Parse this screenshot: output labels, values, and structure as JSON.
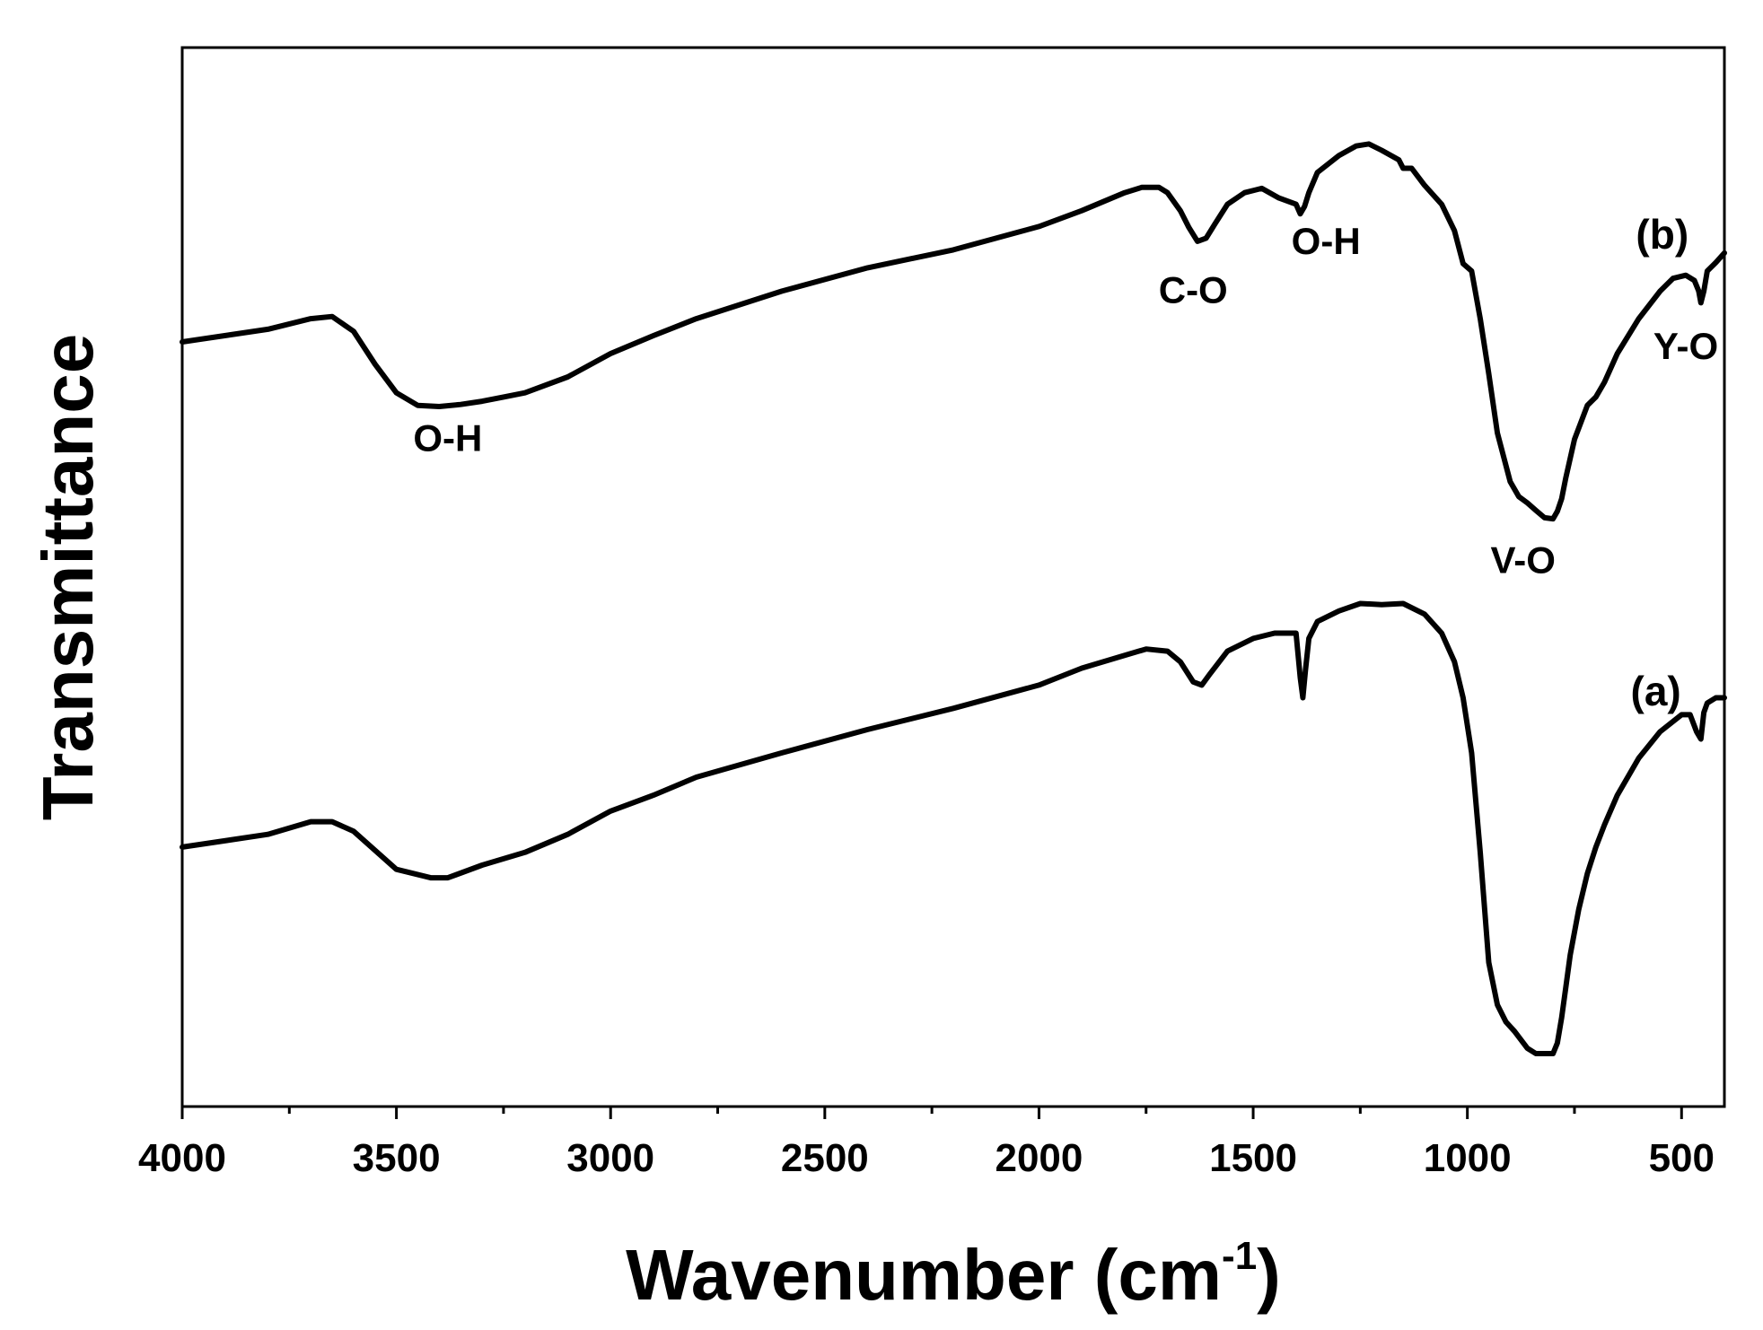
{
  "chart_data": {
    "type": "line",
    "xlabel_main": "Wavenumber (cm",
    "xlabel_sup": "-1",
    "xlabel_close": ")",
    "ylabel": "Transmittance",
    "xlim": [
      4000,
      400
    ],
    "x_reversed": true,
    "ylim": [
      0,
      100
    ],
    "y_ticks_shown": false,
    "grid": false,
    "xticks": [
      4000,
      3500,
      3000,
      2500,
      2000,
      1500,
      1000,
      500
    ],
    "xtick_labels": [
      "4000",
      "3500",
      "3000",
      "2500",
      "2000",
      "1500",
      "1000",
      "500"
    ],
    "series": [
      {
        "name": "(a)",
        "x": [
          4000,
          3800,
          3700,
          3650,
          3600,
          3500,
          3420,
          3380,
          3300,
          3200,
          3100,
          3000,
          2900,
          2800,
          2600,
          2400,
          2200,
          2000,
          1900,
          1800,
          1750,
          1700,
          1670,
          1640,
          1620,
          1600,
          1560,
          1500,
          1450,
          1400,
          1390,
          1384,
          1378,
          1370,
          1350,
          1300,
          1250,
          1200,
          1150,
          1100,
          1060,
          1030,
          1010,
          990,
          970,
          950,
          930,
          910,
          890,
          860,
          840,
          820,
          800,
          790,
          780,
          770,
          760,
          740,
          720,
          700,
          680,
          650,
          600,
          550,
          500,
          480,
          465,
          455,
          448,
          440,
          420,
          400
        ],
        "y": [
          24.5,
          25.7,
          26.9,
          26.9,
          26.0,
          22.4,
          21.6,
          21.6,
          22.8,
          24.0,
          25.7,
          27.9,
          29.4,
          31.1,
          33.4,
          35.6,
          37.6,
          39.8,
          41.4,
          42.6,
          43.2,
          43.0,
          42.0,
          40.1,
          39.8,
          40.9,
          43.0,
          44.2,
          44.7,
          44.7,
          40.5,
          38.6,
          41.2,
          44.2,
          45.8,
          46.8,
          47.5,
          47.4,
          47.5,
          46.5,
          44.7,
          42.0,
          38.6,
          33.4,
          24.0,
          13.6,
          9.6,
          8.0,
          7.1,
          5.5,
          5.0,
          5.0,
          5.0,
          6.0,
          8.4,
          11.3,
          14.3,
          18.6,
          22.0,
          24.5,
          26.6,
          29.4,
          32.9,
          35.4,
          37.0,
          37.0,
          35.4,
          34.7,
          37.2,
          38.1,
          38.6,
          38.6
        ]
      },
      {
        "name": "(b)",
        "x": [
          4000,
          3800,
          3700,
          3650,
          3600,
          3550,
          3500,
          3450,
          3400,
          3350,
          3300,
          3250,
          3200,
          3100,
          3000,
          2900,
          2800,
          2600,
          2400,
          2200,
          2000,
          1900,
          1800,
          1760,
          1720,
          1700,
          1670,
          1650,
          1630,
          1610,
          1590,
          1560,
          1520,
          1480,
          1440,
          1400,
          1390,
          1380,
          1370,
          1350,
          1300,
          1260,
          1230,
          1200,
          1160,
          1150,
          1130,
          1100,
          1060,
          1030,
          1010,
          990,
          970,
          950,
          930,
          900,
          880,
          860,
          840,
          820,
          800,
          790,
          780,
          770,
          750,
          720,
          700,
          680,
          650,
          600,
          550,
          520,
          490,
          470,
          460,
          455,
          448,
          440,
          420,
          400
        ],
        "y": [
          72.2,
          73.4,
          74.4,
          74.6,
          73.2,
          70.1,
          67.4,
          66.2,
          66.1,
          66.3,
          66.6,
          67.0,
          67.4,
          68.9,
          71.1,
          72.8,
          74.4,
          77.0,
          79.2,
          80.9,
          83.1,
          84.6,
          86.3,
          86.8,
          86.8,
          86.3,
          84.6,
          83.0,
          81.7,
          82.0,
          83.3,
          85.2,
          86.3,
          86.7,
          85.8,
          85.2,
          84.3,
          85.0,
          86.3,
          88.2,
          89.8,
          90.7,
          90.9,
          90.3,
          89.4,
          88.6,
          88.6,
          87.0,
          85.2,
          82.7,
          79.6,
          78.9,
          74.4,
          69.2,
          63.6,
          59.0,
          57.6,
          57.0,
          56.3,
          55.6,
          55.5,
          56.2,
          57.4,
          59.4,
          63.0,
          66.2,
          67.0,
          68.4,
          71.1,
          74.4,
          77.0,
          78.2,
          78.5,
          78.0,
          77.0,
          75.9,
          77.0,
          78.9,
          79.7,
          80.6
        ]
      }
    ],
    "annotations": [
      {
        "text": "O-H",
        "x": 3380,
        "y": 61.9
      },
      {
        "text": "C-O",
        "x": 1640,
        "y": 75.9
      },
      {
        "text": "O-H",
        "x": 1330,
        "y": 80.5
      },
      {
        "text": "V-O",
        "x": 870,
        "y": 50.4
      },
      {
        "text": "Y-O",
        "x": 490,
        "y": 70.6
      },
      {
        "text": "(b)",
        "x": 545,
        "y": 81.0
      },
      {
        "text": "(a)",
        "x": 560,
        "y": 37.9
      }
    ]
  }
}
